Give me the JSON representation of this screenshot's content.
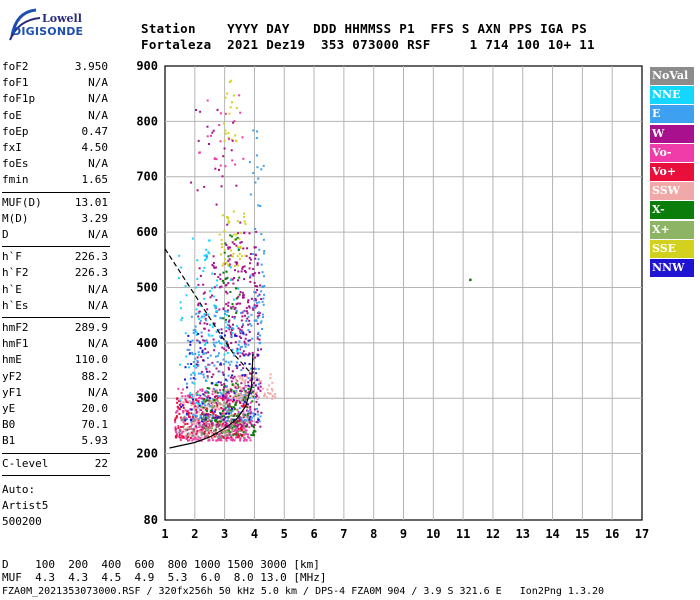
{
  "logo": {
    "line1": "Lowell",
    "line2": "DIGISONDE"
  },
  "header": {
    "line1": "Station    YYYY DAY   DDD HHMMSS P1  FFS S AXN PPS IGA PS",
    "line2": "Fortaleza  2021 Dez19  353 073000 RSF     1 714 100 10+ 11"
  },
  "params": {
    "group1": [
      {
        "k": "foF2",
        "v": "3.950"
      },
      {
        "k": "foF1",
        "v": "N/A"
      },
      {
        "k": "foF1p",
        "v": "N/A"
      },
      {
        "k": "foE",
        "v": "N/A"
      },
      {
        "k": "foEp",
        "v": "0.47"
      },
      {
        "k": "fxI",
        "v": "4.50"
      },
      {
        "k": "foEs",
        "v": "N/A"
      },
      {
        "k": "fmin",
        "v": "1.65"
      }
    ],
    "group2": [
      {
        "k": "MUF(D)",
        "v": "13.01"
      },
      {
        "k": "M(D)",
        "v": "3.29"
      },
      {
        "k": "D",
        "v": "N/A"
      }
    ],
    "group3": [
      {
        "k": "h`F",
        "v": "226.3"
      },
      {
        "k": "h`F2",
        "v": "226.3"
      },
      {
        "k": "h`E",
        "v": "N/A"
      },
      {
        "k": "h`Es",
        "v": "N/A"
      }
    ],
    "group4": [
      {
        "k": "hmF2",
        "v": "289.9"
      },
      {
        "k": "hmF1",
        "v": "N/A"
      },
      {
        "k": "hmE",
        "v": "110.0"
      },
      {
        "k": "yF2",
        "v": "88.2"
      },
      {
        "k": "yF1",
        "v": "N/A"
      },
      {
        "k": "yE",
        "v": "20.0"
      },
      {
        "k": "B0",
        "v": "70.1"
      },
      {
        "k": "B1",
        "v": "5.93"
      }
    ],
    "group5": [
      {
        "k": "C-level",
        "v": "22"
      }
    ],
    "auto": [
      "Auto:",
      "Artist5",
      "500200"
    ]
  },
  "legend": [
    {
      "label": "NoVal",
      "color": "#8c8c8c"
    },
    {
      "label": "NNE",
      "color": "#14d7ff"
    },
    {
      "label": "E",
      "color": "#3ea0f0"
    },
    {
      "label": "W",
      "color": "#a8108e"
    },
    {
      "label": "Vo-",
      "color": "#f03ca8"
    },
    {
      "label": "Vo+",
      "color": "#e8103a"
    },
    {
      "label": "SSW",
      "color": "#f0a8a8"
    },
    {
      "label": "X-",
      "color": "#0a7d0a"
    },
    {
      "label": "X+",
      "color": "#8cb464"
    },
    {
      "label": "SSE",
      "color": "#d2d21e"
    },
    {
      "label": "NNW",
      "color": "#1e14d2"
    }
  ],
  "footer": {
    "line1": "D    100  200  400  600  800 1000 1500 3000 [km]",
    "line2": "MUF  4.3  4.3  4.5  4.9  5.3  6.0  8.0 13.0 [MHz]",
    "line3": "FZA0M_2021353073000.RSF / 320fx256h 50 kHz 5.0 km / DPS-4 FZA0M 904 / 3.9 S 321.6 E   Ion2Png 1.3.20"
  },
  "chart_data": {
    "type": "scatter",
    "xlim": [
      1,
      17
    ],
    "ylim": [
      80,
      900
    ],
    "x_ticks": [
      1,
      2,
      3,
      4,
      5,
      6,
      7,
      8,
      9,
      10,
      11,
      12,
      13,
      14,
      15,
      16,
      17
    ],
    "y_ticks": [
      80,
      200,
      300,
      400,
      500,
      600,
      700,
      800,
      900
    ],
    "grid": true,
    "legend_position": "right",
    "profile_curve": {
      "x": [
        1.15,
        2.0,
        2.5,
        3.0,
        3.4,
        3.7,
        3.9,
        3.95
      ],
      "y": [
        210,
        220,
        230,
        245,
        262,
        285,
        320,
        380
      ]
    },
    "dashed_curve": {
      "x": [
        1.0,
        1.6,
        2.2,
        2.8,
        3.3,
        3.8,
        3.95
      ],
      "y": [
        570,
        520,
        470,
        420,
        380,
        350,
        345
      ]
    },
    "clusters": [
      {
        "series": "Vo-",
        "x": [
          1.3,
          3.9
        ],
        "y": [
          225,
          320
        ],
        "n": 360
      },
      {
        "series": "Vo+",
        "x": [
          1.3,
          3.7
        ],
        "y": [
          230,
          310
        ],
        "n": 200
      },
      {
        "series": "W",
        "x": [
          2.0,
          4.2
        ],
        "y": [
          250,
          560
        ],
        "n": 300
      },
      {
        "series": "W",
        "x": [
          3.0,
          4.1
        ],
        "y": [
          380,
          620
        ],
        "n": 120
      },
      {
        "series": "E",
        "x": [
          1.7,
          4.2
        ],
        "y": [
          260,
          460
        ],
        "n": 220
      },
      {
        "series": "E",
        "x": [
          3.8,
          4.3
        ],
        "y": [
          420,
          800
        ],
        "n": 50
      },
      {
        "series": "NNE",
        "x": [
          1.4,
          2.5
        ],
        "y": [
          280,
          600
        ],
        "n": 50
      },
      {
        "series": "NNE",
        "x": [
          2.0,
          3.5
        ],
        "y": [
          380,
          600
        ],
        "n": 45
      },
      {
        "series": "X-",
        "x": [
          2.2,
          4.0
        ],
        "y": [
          235,
          330
        ],
        "n": 110
      },
      {
        "series": "X+",
        "x": [
          2.0,
          3.8
        ],
        "y": [
          240,
          320
        ],
        "n": 60
      },
      {
        "series": "SSW",
        "x": [
          3.3,
          4.7
        ],
        "y": [
          300,
          345
        ],
        "n": 70
      },
      {
        "series": "SSW",
        "x": [
          1.5,
          3.0
        ],
        "y": [
          230,
          300
        ],
        "n": 50
      },
      {
        "series": "SSE",
        "x": [
          2.8,
          3.7
        ],
        "y": [
          540,
          640
        ],
        "n": 45
      },
      {
        "series": "SSE",
        "x": [
          2.9,
          3.4
        ],
        "y": [
          760,
          880
        ],
        "n": 20
      },
      {
        "series": "NNW",
        "x": [
          1.5,
          4.1
        ],
        "y": [
          260,
          420
        ],
        "n": 80
      },
      {
        "series": "Vo-",
        "x": [
          2.0,
          3.6
        ],
        "y": [
          720,
          850
        ],
        "n": 22
      },
      {
        "series": "W",
        "x": [
          1.8,
          3.4
        ],
        "y": [
          650,
          860
        ],
        "n": 22
      },
      {
        "series": "X-",
        "x": [
          2.9,
          3.5
        ],
        "y": [
          440,
          600
        ],
        "n": 25
      },
      {
        "series": "NoVal",
        "x": [
          1.4,
          3.8
        ],
        "y": [
          230,
          270
        ],
        "n": 60
      }
    ],
    "isolated_points": [
      {
        "series": "X-",
        "x": 11.2,
        "y": 516
      }
    ]
  }
}
